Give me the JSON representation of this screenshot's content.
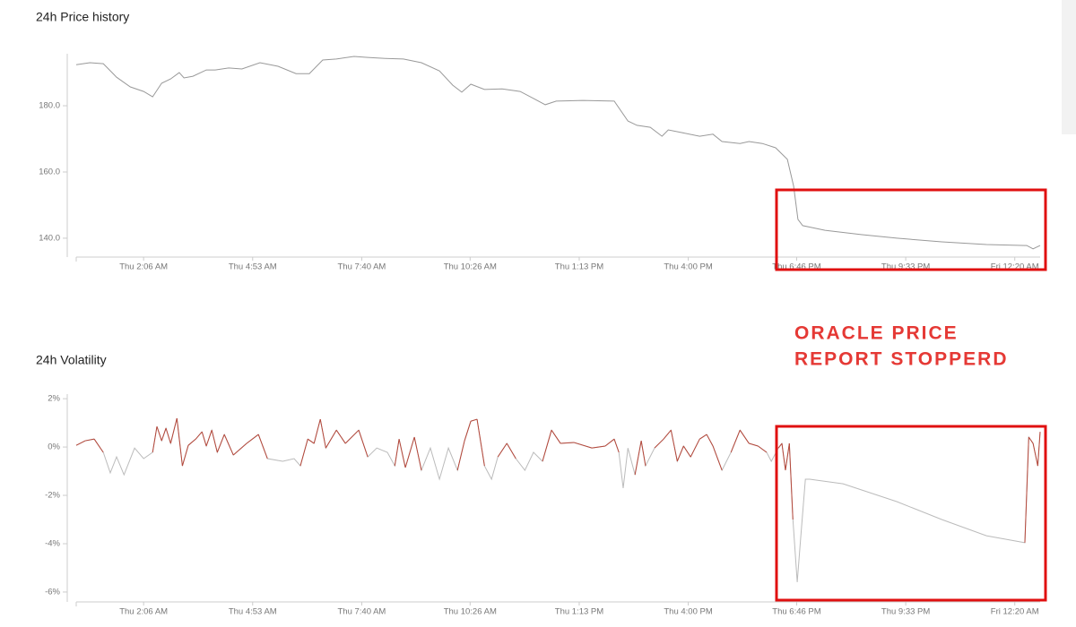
{
  "chart_data": [
    {
      "type": "line",
      "title": "24h Price history",
      "color": "#999999",
      "x": [
        0.38,
        0.73,
        1.07,
        1.23,
        1.41,
        1.76,
        2.1,
        2.33,
        2.56,
        2.79,
        3.01,
        3.13,
        3.36,
        3.7,
        3.93,
        4.27,
        4.61,
        5.07,
        5.53,
        5.99,
        6.33,
        6.67,
        7.02,
        7.47,
        7.82,
        8.27,
        8.73,
        9.19,
        9.65,
        9.99,
        10.22,
        10.45,
        10.8,
        11.25,
        11.71,
        12.05,
        12.35,
        12.63,
        13.31,
        14.11,
        14.46,
        14.69,
        15.03,
        15.33,
        15.49,
        15.83,
        16.29,
        16.63,
        16.86,
        17.32,
        17.55,
        17.89,
        18.23,
        18.53,
        18.69,
        18.8,
        18.92,
        19.49,
        20.41,
        21.32,
        22.47,
        23.61,
        24.64,
        24.8,
        24.98
      ],
      "values": [
        192.4,
        193.0,
        192.7,
        190.8,
        188.6,
        185.7,
        184.3,
        182.7,
        186.8,
        188.1,
        190.0,
        188.4,
        188.9,
        190.8,
        190.8,
        191.4,
        191.1,
        193.0,
        191.9,
        189.7,
        189.7,
        193.8,
        194.1,
        194.9,
        194.6,
        194.3,
        194.1,
        193.0,
        190.5,
        186.2,
        184.1,
        186.5,
        184.9,
        185.1,
        184.3,
        182.2,
        180.3,
        181.4,
        181.6,
        181.4,
        175.4,
        174.1,
        173.5,
        170.8,
        172.7,
        171.9,
        170.8,
        171.4,
        169.2,
        168.6,
        169.2,
        168.6,
        167.3,
        163.8,
        155.7,
        145.7,
        143.8,
        142.4,
        141.1,
        140.0,
        138.9,
        138.1,
        137.8,
        136.8,
        137.8
      ],
      "xlim": [
        0.38,
        24.98
      ],
      "xticks": [
        {
          "value": 2.1,
          "label": "Thu 2:06 AM"
        },
        {
          "value": 4.883,
          "label": "Thu 4:53 AM"
        },
        {
          "value": 7.667,
          "label": "Thu 7:40 AM"
        },
        {
          "value": 10.433,
          "label": "Thu 10:26 AM"
        },
        {
          "value": 13.217,
          "label": "Thu 1:13 PM"
        },
        {
          "value": 16,
          "label": "Thu 4:00 PM"
        },
        {
          "value": 18.767,
          "label": "Thu 6:46 PM"
        },
        {
          "value": 21.55,
          "label": "Thu 9:33 PM"
        },
        {
          "value": 24.333,
          "label": "Fri 12:20 AM"
        }
      ],
      "ylim": [
        134.3,
        195.7
      ],
      "yticks": [
        {
          "value": 140,
          "label": "140.0"
        },
        {
          "value": 160,
          "label": "160.0"
        },
        {
          "value": 180,
          "label": "180.0"
        }
      ]
    },
    {
      "type": "line",
      "title": "24h Volatility",
      "color": "#bbbbbb",
      "highlight_color": "#b5473a",
      "x": [
        0.38,
        0.61,
        0.84,
        1.07,
        1.25,
        1.41,
        1.6,
        1.87,
        2.1,
        2.33,
        2.44,
        2.56,
        2.67,
        2.79,
        2.95,
        3.09,
        3.24,
        3.43,
        3.59,
        3.7,
        3.84,
        3.98,
        4.16,
        4.39,
        4.73,
        5.03,
        5.26,
        5.65,
        5.94,
        6.1,
        6.29,
        6.45,
        6.61,
        6.75,
        7.02,
        7.25,
        7.59,
        7.82,
        8.05,
        8.32,
        8.51,
        8.62,
        8.78,
        9.01,
        9.19,
        9.42,
        9.65,
        9.88,
        10.11,
        10.29,
        10.45,
        10.61,
        10.8,
        10.98,
        11.14,
        11.37,
        11.6,
        11.83,
        12.05,
        12.28,
        12.51,
        12.74,
        13.08,
        13.54,
        13.88,
        14.11,
        14.23,
        14.34,
        14.46,
        14.64,
        14.8,
        14.91,
        15.14,
        15.37,
        15.56,
        15.72,
        15.88,
        16.06,
        16.29,
        16.47,
        16.63,
        16.86,
        17.09,
        17.32,
        17.55,
        17.78,
        18.0,
        18.12,
        18.3,
        18.39,
        18.48,
        18.58,
        18.67,
        18.78,
        18.87,
        18.99,
        19.1,
        19.95,
        21.32,
        22.47,
        23.61,
        24.59,
        24.69,
        24.8,
        24.92,
        24.98
      ],
      "values": [
        0.07,
        0.26,
        0.33,
        -0.22,
        -1.07,
        -0.41,
        -1.15,
        -0.04,
        -0.48,
        -0.22,
        0.85,
        0.26,
        0.78,
        0.15,
        1.19,
        -0.78,
        0.07,
        0.33,
        0.63,
        0.04,
        0.7,
        -0.22,
        0.52,
        -0.33,
        0.15,
        0.52,
        -0.48,
        -0.59,
        -0.48,
        -0.78,
        0.33,
        0.15,
        1.15,
        -0.04,
        0.7,
        0.15,
        0.7,
        -0.41,
        -0.04,
        -0.22,
        -0.78,
        0.33,
        -0.85,
        0.41,
        -0.96,
        -0.04,
        -1.33,
        -0.04,
        -0.96,
        0.26,
        1.07,
        1.15,
        -0.78,
        -1.33,
        -0.41,
        0.15,
        -0.48,
        -0.96,
        -0.22,
        -0.59,
        0.7,
        0.15,
        0.19,
        -0.04,
        0.04,
        0.33,
        -0.22,
        -1.7,
        -0.04,
        -1.15,
        0.26,
        -0.78,
        -0.04,
        0.33,
        0.7,
        -0.59,
        0.04,
        -0.41,
        0.33,
        0.52,
        0.04,
        -0.96,
        -0.22,
        0.7,
        0.15,
        0.04,
        -0.22,
        -0.59,
        -0.04,
        0.15,
        -0.96,
        0.15,
        -3.0,
        -5.59,
        -3.74,
        -1.33,
        -1.33,
        -1.52,
        -2.26,
        -3.0,
        -3.67,
        -3.96,
        0.41,
        0.15,
        -0.78,
        0.63
      ],
      "xlim": [
        0.38,
        24.98
      ],
      "xticks": [
        {
          "value": 2.1,
          "label": "Thu 2:06 AM"
        },
        {
          "value": 4.883,
          "label": "Thu 4:53 AM"
        },
        {
          "value": 7.667,
          "label": "Thu 7:40 AM"
        },
        {
          "value": 10.433,
          "label": "Thu 10:26 AM"
        },
        {
          "value": 13.217,
          "label": "Thu 1:13 PM"
        },
        {
          "value": 16,
          "label": "Thu 4:00 PM"
        },
        {
          "value": 18.767,
          "label": "Thu 6:46 PM"
        },
        {
          "value": 21.55,
          "label": "Thu 9:33 PM"
        },
        {
          "value": 24.333,
          "label": "Fri 12:20 AM"
        }
      ],
      "ylim": [
        -6.41,
        2.19
      ],
      "yticks": [
        {
          "value": -6,
          "label": "-6%"
        },
        {
          "value": -4,
          "label": "-4%"
        },
        {
          "value": -2,
          "label": "-2%"
        },
        {
          "value": 0,
          "label": "0%"
        },
        {
          "value": 2,
          "label": "2%"
        }
      ]
    }
  ],
  "annotation": [
    "ORACLE PRICE",
    "REPORT STOPPERD"
  ]
}
